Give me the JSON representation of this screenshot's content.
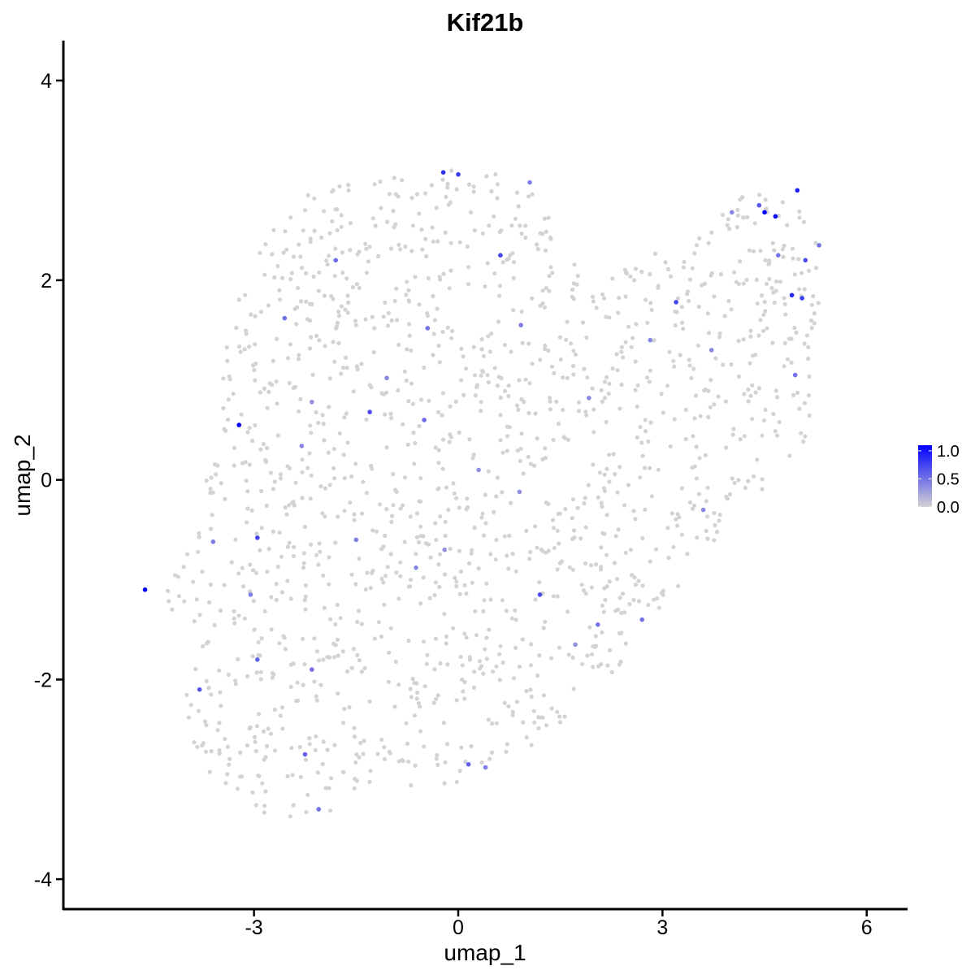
{
  "chart_data": {
    "type": "scatter",
    "title": "Kif21b",
    "xlabel": "umap_1",
    "ylabel": "umap_2",
    "xlim": [
      -5.8,
      6.6
    ],
    "ylim": [
      -4.3,
      4.4
    ],
    "x_ticks": [
      -3,
      0,
      3,
      6
    ],
    "x_tick_labels": [
      "-3",
      "0",
      "3",
      "6"
    ],
    "y_ticks": [
      -4,
      -2,
      0,
      2,
      4
    ],
    "y_tick_labels": [
      "-4",
      "-2",
      "0",
      "2",
      "4"
    ],
    "grid": false,
    "legend": {
      "placement": "right",
      "type": "colorbar",
      "ticks": [
        0.0,
        0.5,
        1.0
      ],
      "tick_labels": [
        "0.0",
        "0.5",
        "1.0"
      ],
      "range": [
        0,
        1.1
      ],
      "low_color": "#d3d3d3",
      "high_color": "#0000ff"
    },
    "background_color": "#d3d3d3",
    "background_point_count": 1500,
    "series": [
      {
        "values": [
          [
            -4.6,
            -1.1,
            1.15
          ],
          [
            -3.22,
            0.55,
            1.1
          ],
          [
            4.5,
            2.68,
            1.1
          ],
          [
            4.66,
            2.64,
            1.1
          ],
          [
            4.98,
            2.9,
            0.95
          ],
          [
            4.9,
            1.85,
            0.9
          ],
          [
            5.05,
            1.82,
            0.8
          ],
          [
            -0.22,
            3.08,
            0.85
          ],
          [
            0.0,
            3.06,
            0.8
          ],
          [
            0.62,
            2.25,
            0.75
          ],
          [
            3.2,
            1.78,
            0.75
          ],
          [
            -2.95,
            -0.58,
            0.75
          ],
          [
            -1.3,
            0.68,
            0.7
          ],
          [
            1.2,
            -1.15,
            0.7
          ],
          [
            5.1,
            2.2,
            0.7
          ],
          [
            4.42,
            2.75,
            0.65
          ],
          [
            -3.8,
            -2.1,
            0.65
          ],
          [
            -2.95,
            -1.8,
            0.6
          ],
          [
            -2.25,
            -2.75,
            0.6
          ],
          [
            0.15,
            -2.85,
            0.6
          ],
          [
            -0.5,
            0.6,
            0.55
          ],
          [
            -1.8,
            2.2,
            0.55
          ],
          [
            -2.55,
            1.62,
            0.5
          ],
          [
            4.7,
            2.25,
            0.5
          ],
          [
            5.3,
            2.35,
            0.5
          ],
          [
            4.95,
            1.05,
            0.5
          ],
          [
            -2.15,
            -1.9,
            0.5
          ],
          [
            -2.05,
            -3.3,
            0.5
          ],
          [
            2.7,
            -1.4,
            0.5
          ],
          [
            2.05,
            -1.45,
            0.5
          ],
          [
            -0.45,
            1.52,
            0.5
          ],
          [
            0.92,
            1.55,
            0.45
          ],
          [
            1.05,
            2.98,
            0.45
          ],
          [
            -1.5,
            -0.6,
            0.45
          ],
          [
            -3.6,
            -0.62,
            0.45
          ],
          [
            -3.05,
            -1.15,
            0.45
          ],
          [
            0.4,
            -2.88,
            0.45
          ],
          [
            -2.3,
            0.34,
            0.4
          ],
          [
            -1.05,
            1.02,
            0.4
          ],
          [
            -0.62,
            -0.88,
            0.4
          ],
          [
            1.92,
            0.82,
            0.4
          ],
          [
            2.82,
            1.4,
            0.4
          ],
          [
            3.72,
            1.3,
            0.4
          ],
          [
            3.6,
            -0.3,
            0.4
          ],
          [
            4.02,
            2.68,
            0.4
          ],
          [
            0.9,
            -0.12,
            0.35
          ],
          [
            -2.15,
            0.78,
            0.35
          ],
          [
            0.3,
            0.1,
            0.35
          ],
          [
            -0.2,
            -0.7,
            0.35
          ],
          [
            1.72,
            -1.65,
            0.35
          ]
        ]
      }
    ]
  }
}
